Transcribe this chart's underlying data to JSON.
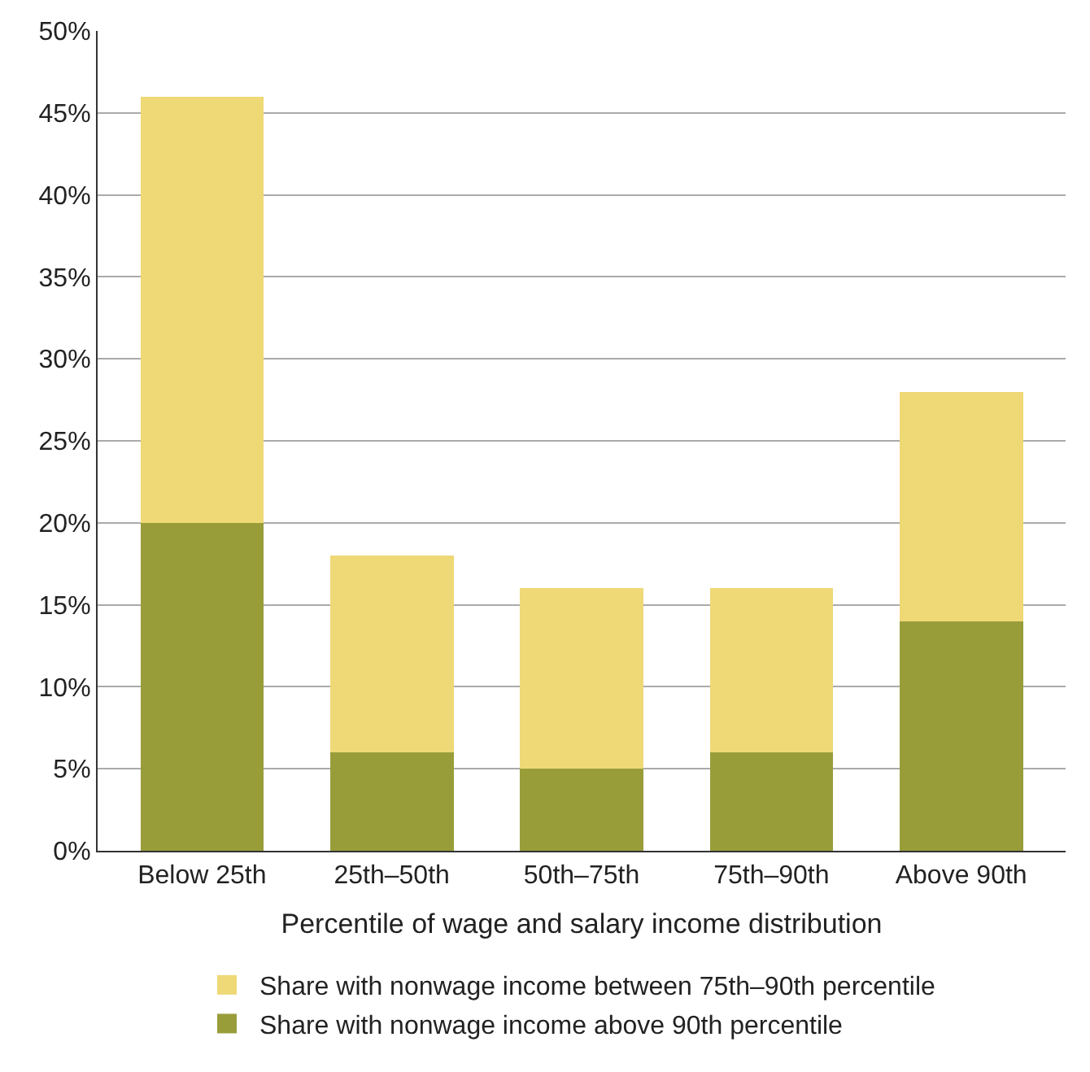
{
  "chart_data": {
    "type": "bar",
    "stacked": true,
    "xlabel": "Percentile of wage and salary income distribution",
    "categories": [
      "Below 25th",
      "25th–50th",
      "50th–75th",
      "75th–90th",
      "Above 90th"
    ],
    "series": [
      {
        "name": "Share with nonwage income above 90th percentile",
        "color": "#989d3a",
        "values": [
          20,
          6,
          5,
          6,
          14
        ]
      },
      {
        "name": "Share with nonwage income between 75th–90th percentile",
        "color": "#efd876",
        "values": [
          26,
          12,
          11,
          10,
          14
        ]
      }
    ],
    "ylim": [
      0,
      50
    ],
    "yticks": [
      {
        "value": 0,
        "label": "0%"
      },
      {
        "value": 5,
        "label": "5%"
      },
      {
        "value": 10,
        "label": "10%"
      },
      {
        "value": 15,
        "label": "15%"
      },
      {
        "value": 20,
        "label": "20%"
      },
      {
        "value": 25,
        "label": "25%"
      },
      {
        "value": 30,
        "label": "30%"
      },
      {
        "value": 35,
        "label": "35%"
      },
      {
        "value": 40,
        "label": "40%"
      },
      {
        "value": 45,
        "label": "45%"
      },
      {
        "value": 50,
        "label": "50%"
      }
    ],
    "grid": "y",
    "legend": "bottom"
  }
}
